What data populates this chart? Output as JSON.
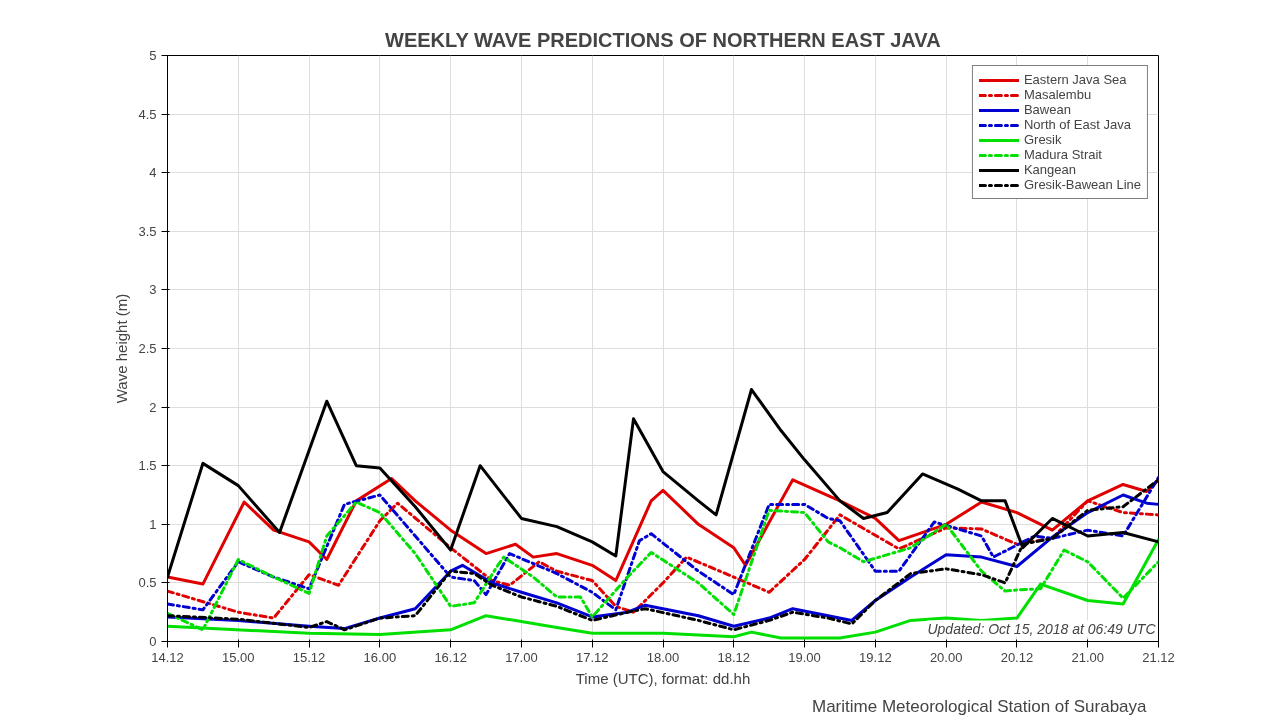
{
  "chart_data": {
    "type": "line",
    "title": "WEEKLY WAVE PREDICTIONS OF NORTHERN EAST JAVA",
    "xlabel": "Time (UTC), format: dd.hh",
    "ylabel": "Wave height (m)",
    "xlim": [
      "2018-10-14T12:00",
      "2018-10-21T12:00"
    ],
    "xticks": [
      {
        "value": "2018-10-14T12:00",
        "label": "14.12"
      },
      {
        "value": "2018-10-15T00:00",
        "label": "15.00"
      },
      {
        "value": "2018-10-15T12:00",
        "label": "15.12"
      },
      {
        "value": "2018-10-16T00:00",
        "label": "16.00"
      },
      {
        "value": "2018-10-16T12:00",
        "label": "16.12"
      },
      {
        "value": "2018-10-17T00:00",
        "label": "17.00"
      },
      {
        "value": "2018-10-17T12:00",
        "label": "17.12"
      },
      {
        "value": "2018-10-18T00:00",
        "label": "18.00"
      },
      {
        "value": "2018-10-18T12:00",
        "label": "18.12"
      },
      {
        "value": "2018-10-19T00:00",
        "label": "19.00"
      },
      {
        "value": "2018-10-19T12:00",
        "label": "19.12"
      },
      {
        "value": "2018-10-20T00:00",
        "label": "20.00"
      },
      {
        "value": "2018-10-20T12:00",
        "label": "20.12"
      },
      {
        "value": "2018-10-21T00:00",
        "label": "21.00"
      },
      {
        "value": "2018-10-21T12:00",
        "label": "21.12"
      }
    ],
    "ylim": [
      0,
      5
    ],
    "yticks": [
      0,
      0.5,
      1,
      1.5,
      2,
      2.5,
      3,
      3.5,
      4,
      4.5,
      5
    ],
    "grid": true,
    "legend": "top right",
    "annotations": [
      "Updated: Oct 15, 2018 at 06:49 UTC",
      "Maritime Meteorological Station of Surabaya"
    ],
    "series": [
      {
        "name": "Eastern Java Sea",
        "color": "#e00000",
        "line_style": "solid",
        "x": [
          "2018-10-14T12:00",
          "2018-10-14T18:00",
          "2018-10-15T01:00",
          "2018-10-15T06:00",
          "2018-10-15T12:00",
          "2018-10-15T15:00",
          "2018-10-15T20:00",
          "2018-10-16T02:00",
          "2018-10-16T06:00",
          "2018-10-16T12:00",
          "2018-10-16T18:00",
          "2018-10-16T23:00",
          "2018-10-17T02:00",
          "2018-10-17T06:00",
          "2018-10-17T12:00",
          "2018-10-17T16:00",
          "2018-10-17T22:00",
          "2018-10-18T00:00",
          "2018-10-18T06:00",
          "2018-10-18T12:00",
          "2018-10-18T14:00",
          "2018-10-18T20:00",
          "2018-10-18T22:00",
          "2018-10-19T06:00",
          "2018-10-19T12:00",
          "2018-10-19T16:00",
          "2018-10-20T00:00",
          "2018-10-20T06:00",
          "2018-10-20T12:00",
          "2018-10-20T18:00",
          "2018-10-21T00:00",
          "2018-10-21T06:00",
          "2018-10-21T10:00",
          "2018-10-21T12:00"
        ],
        "values": [
          0.55,
          0.49,
          1.19,
          0.95,
          0.85,
          0.7,
          1.2,
          1.39,
          1.2,
          0.95,
          0.75,
          0.83,
          0.72,
          0.75,
          0.65,
          0.52,
          1.2,
          1.29,
          1.0,
          0.8,
          0.65,
          1.2,
          1.38,
          1.2,
          1.05,
          0.86,
          1.0,
          1.19,
          1.1,
          0.95,
          1.2,
          1.34,
          1.28,
          1.38
        ]
      },
      {
        "name": "Masalembu",
        "color": "#e00000",
        "line_style": "dashed",
        "x": [
          "2018-10-14T12:00",
          "2018-10-15T00:00",
          "2018-10-15T06:00",
          "2018-10-15T12:00",
          "2018-10-15T17:00",
          "2018-10-16T00:00",
          "2018-10-16T03:00",
          "2018-10-16T12:00",
          "2018-10-16T19:00",
          "2018-10-16T22:00",
          "2018-10-17T03:00",
          "2018-10-17T06:00",
          "2018-10-17T12:00",
          "2018-10-17T16:00",
          "2018-10-17T19:00",
          "2018-10-18T00:00",
          "2018-10-18T04:00",
          "2018-10-18T12:00",
          "2018-10-18T18:00",
          "2018-10-19T00:00",
          "2018-10-19T06:00",
          "2018-10-19T16:00",
          "2018-10-20T00:00",
          "2018-10-20T06:00",
          "2018-10-20T12:00",
          "2018-10-20T18:00",
          "2018-10-21T00:00",
          "2018-10-21T06:00",
          "2018-10-21T12:00"
        ],
        "values": [
          0.43,
          0.25,
          0.2,
          0.57,
          0.48,
          1.03,
          1.18,
          0.8,
          0.52,
          0.48,
          0.68,
          0.6,
          0.52,
          0.3,
          0.25,
          0.5,
          0.72,
          0.55,
          0.42,
          0.7,
          1.08,
          0.79,
          0.97,
          0.96,
          0.83,
          0.88,
          1.2,
          1.1,
          1.08
        ]
      },
      {
        "name": "Bawean",
        "color": "#0000d0",
        "line_style": "solid",
        "x": [
          "2018-10-14T12:00",
          "2018-10-15T00:00",
          "2018-10-15T12:00",
          "2018-10-15T18:00",
          "2018-10-16T00:00",
          "2018-10-16T06:00",
          "2018-10-16T12:00",
          "2018-10-16T14:00",
          "2018-10-16T19:00",
          "2018-10-17T00:00",
          "2018-10-17T06:00",
          "2018-10-17T12:00",
          "2018-10-17T18:00",
          "2018-10-17T21:00",
          "2018-10-18T06:00",
          "2018-10-18T12:00",
          "2018-10-18T18:00",
          "2018-10-18T22:00",
          "2018-10-19T04:00",
          "2018-10-19T08:00",
          "2018-10-19T12:00",
          "2018-10-19T18:00",
          "2018-10-20T00:00",
          "2018-10-20T06:00",
          "2018-10-20T12:00",
          "2018-10-20T18:00",
          "2018-10-21T00:00",
          "2018-10-21T06:00",
          "2018-10-21T10:00",
          "2018-10-21T12:00"
        ],
        "values": [
          0.21,
          0.18,
          0.13,
          0.11,
          0.2,
          0.28,
          0.6,
          0.65,
          0.5,
          0.42,
          0.33,
          0.21,
          0.25,
          0.31,
          0.22,
          0.13,
          0.2,
          0.28,
          0.22,
          0.18,
          0.35,
          0.55,
          0.74,
          0.72,
          0.64,
          0.89,
          1.1,
          1.25,
          1.18,
          1.17
        ]
      },
      {
        "name": "North of East Java",
        "color": "#0000d0",
        "line_style": "dashed",
        "x": [
          "2018-10-14T12:00",
          "2018-10-14T18:00",
          "2018-10-15T00:00",
          "2018-10-15T06:00",
          "2018-10-15T12:00",
          "2018-10-15T18:00",
          "2018-10-16T00:00",
          "2018-10-16T06:00",
          "2018-10-16T12:00",
          "2018-10-16T16:00",
          "2018-10-16T18:00",
          "2018-10-16T22:00",
          "2018-10-17T06:00",
          "2018-10-17T12:00",
          "2018-10-17T16:00",
          "2018-10-17T20:00",
          "2018-10-17T22:00",
          "2018-10-18T06:00",
          "2018-10-18T12:00",
          "2018-10-18T18:00",
          "2018-10-19T00:00",
          "2018-10-19T04:00",
          "2018-10-19T06:00",
          "2018-10-19T12:00",
          "2018-10-19T16:00",
          "2018-10-19T22:00",
          "2018-10-20T06:00",
          "2018-10-20T08:00",
          "2018-10-20T15:00",
          "2018-10-20T18:00",
          "2018-10-21T00:00",
          "2018-10-21T06:00",
          "2018-10-21T12:00"
        ],
        "values": [
          0.32,
          0.27,
          0.68,
          0.55,
          0.45,
          1.17,
          1.25,
          0.9,
          0.55,
          0.52,
          0.4,
          0.75,
          0.58,
          0.42,
          0.27,
          0.86,
          0.92,
          0.6,
          0.4,
          1.17,
          1.17,
          1.05,
          1.03,
          0.6,
          0.6,
          1.02,
          0.9,
          0.72,
          0.9,
          0.88,
          0.95,
          0.9,
          1.4
        ]
      },
      {
        "name": "Gresik",
        "color": "#00e000",
        "line_style": "solid",
        "x": [
          "2018-10-14T12:00",
          "2018-10-15T12:00",
          "2018-10-16T00:00",
          "2018-10-16T12:00",
          "2018-10-16T18:00",
          "2018-10-17T06:00",
          "2018-10-17T12:00",
          "2018-10-18T00:00",
          "2018-10-18T12:00",
          "2018-10-18T15:00",
          "2018-10-18T20:00",
          "2018-10-19T06:00",
          "2018-10-19T12:00",
          "2018-10-19T18:00",
          "2018-10-20T00:00",
          "2018-10-20T06:00",
          "2018-10-20T12:00",
          "2018-10-20T16:00",
          "2018-10-21T00:00",
          "2018-10-21T06:00",
          "2018-10-21T12:00"
        ],
        "values": [
          0.13,
          0.07,
          0.06,
          0.1,
          0.22,
          0.12,
          0.07,
          0.07,
          0.04,
          0.08,
          0.03,
          0.03,
          0.08,
          0.18,
          0.2,
          0.18,
          0.2,
          0.49,
          0.35,
          0.32,
          0.87
        ]
      },
      {
        "name": "Madura Strait",
        "color": "#00e000",
        "line_style": "dashed",
        "x": [
          "2018-10-14T12:00",
          "2018-10-14T18:00",
          "2018-10-15T00:00",
          "2018-10-15T06:00",
          "2018-10-15T12:00",
          "2018-10-15T15:00",
          "2018-10-15T20:00",
          "2018-10-16T00:00",
          "2018-10-16T06:00",
          "2018-10-16T12:00",
          "2018-10-16T16:00",
          "2018-10-16T20:00",
          "2018-10-16T21:00",
          "2018-10-17T02:00",
          "2018-10-17T06:00",
          "2018-10-17T10:00",
          "2018-10-17T12:00",
          "2018-10-17T18:00",
          "2018-10-17T22:00",
          "2018-10-18T06:00",
          "2018-10-18T12:00",
          "2018-10-18T18:00",
          "2018-10-19T00:00",
          "2018-10-19T04:00",
          "2018-10-19T06:00",
          "2018-10-19T10:00",
          "2018-10-19T18:00",
          "2018-10-20T00:00",
          "2018-10-20T06:00",
          "2018-10-20T10:00",
          "2018-10-20T12:00",
          "2018-10-20T16:00",
          "2018-10-20T20:00",
          "2018-10-21T00:00",
          "2018-10-21T06:00",
          "2018-10-21T12:00"
        ],
        "values": [
          0.24,
          0.1,
          0.7,
          0.55,
          0.41,
          0.9,
          1.19,
          1.1,
          0.75,
          0.3,
          0.33,
          0.65,
          0.72,
          0.55,
          0.38,
          0.38,
          0.21,
          0.55,
          0.76,
          0.5,
          0.23,
          1.12,
          1.1,
          0.85,
          0.8,
          0.68,
          0.8,
          1.0,
          0.6,
          0.43,
          0.44,
          0.45,
          0.78,
          0.68,
          0.37,
          0.68
        ]
      },
      {
        "name": "Kangean",
        "color": "#000000",
        "line_style": "solid",
        "x": [
          "2018-10-14T12:00",
          "2018-10-14T18:00",
          "2018-10-15T00:00",
          "2018-10-15T07:00",
          "2018-10-15T15:00",
          "2018-10-15T20:00",
          "2018-10-16T00:00",
          "2018-10-16T06:00",
          "2018-10-16T12:00",
          "2018-10-16T17:00",
          "2018-10-17T00:00",
          "2018-10-17T06:00",
          "2018-10-17T12:00",
          "2018-10-17T16:00",
          "2018-10-17T19:00",
          "2018-10-18T00:00",
          "2018-10-18T06:00",
          "2018-10-18T09:00",
          "2018-10-18T15:00",
          "2018-10-18T20:00",
          "2018-10-19T00:00",
          "2018-10-19T06:00",
          "2018-10-19T10:00",
          "2018-10-19T14:00",
          "2018-10-19T20:00",
          "2018-10-20T02:00",
          "2018-10-20T06:00",
          "2018-10-20T10:00",
          "2018-10-20T13:00",
          "2018-10-20T18:00",
          "2018-10-21T00:00",
          "2018-10-21T06:00",
          "2018-10-21T12:00"
        ],
        "values": [
          0.55,
          1.52,
          1.33,
          0.93,
          2.05,
          1.5,
          1.48,
          1.15,
          0.78,
          1.5,
          1.05,
          0.98,
          0.85,
          0.73,
          1.9,
          1.45,
          1.2,
          1.08,
          2.15,
          1.8,
          1.55,
          1.2,
          1.05,
          1.1,
          1.43,
          1.3,
          1.2,
          1.2,
          0.8,
          1.05,
          0.9,
          0.93,
          0.85
        ]
      },
      {
        "name": "Gresik-Bawean Line",
        "color": "#000000",
        "line_style": "dashed",
        "x": [
          "2018-10-14T12:00",
          "2018-10-15T00:00",
          "2018-10-15T12:00",
          "2018-10-15T15:00",
          "2018-10-15T18:00",
          "2018-10-16T00:00",
          "2018-10-16T06:00",
          "2018-10-16T12:00",
          "2018-10-16T16:00",
          "2018-10-16T19:00",
          "2018-10-17T00:00",
          "2018-10-17T06:00",
          "2018-10-17T12:00",
          "2018-10-17T18:00",
          "2018-10-17T21:00",
          "2018-10-18T06:00",
          "2018-10-18T12:00",
          "2018-10-18T18:00",
          "2018-10-18T22:00",
          "2018-10-19T04:00",
          "2018-10-19T08:00",
          "2018-10-19T12:00",
          "2018-10-19T18:00",
          "2018-10-20T00:00",
          "2018-10-20T06:00",
          "2018-10-20T10:00",
          "2018-10-20T13:00",
          "2018-10-20T18:00",
          "2018-10-21T00:00",
          "2018-10-21T06:00",
          "2018-10-21T12:00"
        ],
        "values": [
          0.22,
          0.19,
          0.12,
          0.17,
          0.1,
          0.2,
          0.22,
          0.6,
          0.58,
          0.48,
          0.38,
          0.3,
          0.18,
          0.25,
          0.28,
          0.18,
          0.1,
          0.18,
          0.25,
          0.2,
          0.15,
          0.35,
          0.58,
          0.62,
          0.57,
          0.5,
          0.83,
          0.88,
          1.12,
          1.15,
          1.38
        ]
      }
    ]
  }
}
